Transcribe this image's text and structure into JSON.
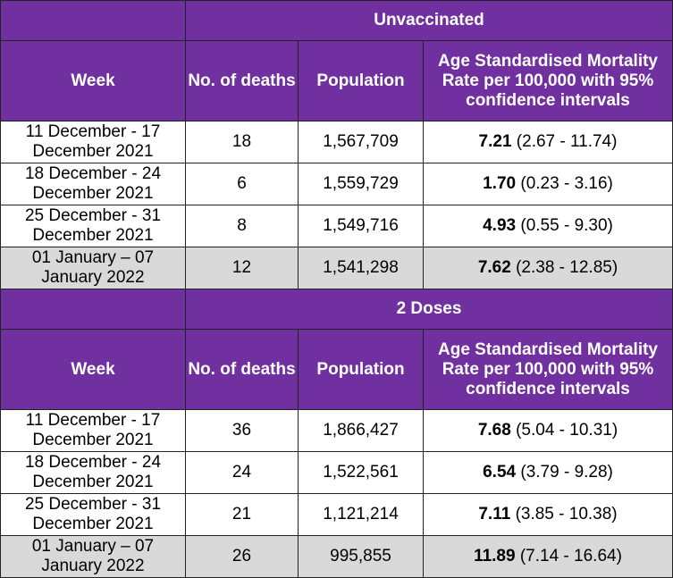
{
  "sections": [
    {
      "title": "Unvaccinated",
      "headers": {
        "week": "Week",
        "deaths": "No. of deaths",
        "population": "Population",
        "rate": "Age Standardised Mortality Rate per 100,000 with 95% confidence intervals"
      },
      "rows": [
        {
          "week": "11 December - 17 December 2021",
          "deaths": "18",
          "population": "1,567,709",
          "rate": "7.21",
          "ci": "(2.67 - 11.74)"
        },
        {
          "week": "18 December - 24 December 2021",
          "deaths": "6",
          "population": "1,559,729",
          "rate": "1.70",
          "ci": "(0.23 - 3.16)"
        },
        {
          "week": "25 December - 31 December 2021",
          "deaths": "8",
          "population": "1,549,716",
          "rate": "4.93",
          "ci": "(0.55 - 9.30)"
        },
        {
          "week": "01 January – 07 January 2022",
          "deaths": "12",
          "population": "1,541,298",
          "rate": "7.62",
          "ci": "(2.38 - 12.85)"
        }
      ]
    },
    {
      "title": "2 Doses",
      "headers": {
        "week": "Week",
        "deaths": "No. of deaths",
        "population": "Population",
        "rate": "Age Standardised Mortality Rate per 100,000 with 95% confidence intervals"
      },
      "rows": [
        {
          "week": "11 December - 17 December 2021",
          "deaths": "36",
          "population": "1,866,427",
          "rate": "7.68",
          "ci": "(5.04 - 10.31)"
        },
        {
          "week": "18 December - 24 December 2021",
          "deaths": "24",
          "population": "1,522,561",
          "rate": "6.54",
          "ci": "(3.79 - 9.28)"
        },
        {
          "week": "25 December - 31 December 2021",
          "deaths": "21",
          "population": "1,121,214",
          "rate": "7.11",
          "ci": "(3.85 - 10.38)"
        },
        {
          "week": "01 January – 07 January 2022",
          "deaths": "26",
          "population": "995,855",
          "rate": "11.89",
          "ci": "(7.14 - 16.64)"
        }
      ]
    }
  ],
  "colors": {
    "header_bg": "#7030A0",
    "header_text": "#FFFFFF",
    "shaded_row": "#D9D9D9"
  }
}
